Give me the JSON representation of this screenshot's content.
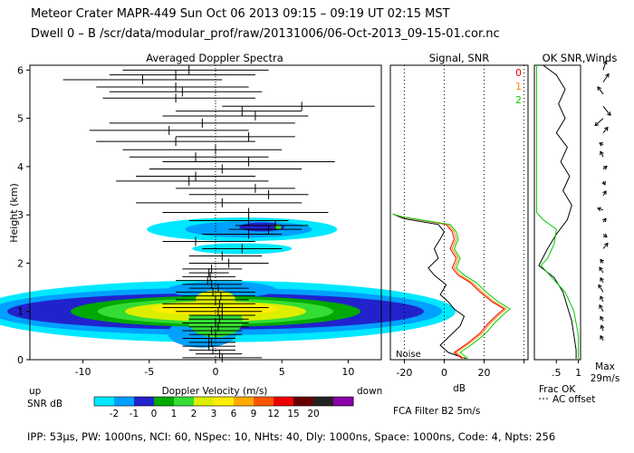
{
  "header": {
    "title": "Meteor Crater  MAPR-449  Sun Oct 06 2013 09:15 – 09:19 UT 02:15 MST",
    "subtitle": "Dwell  0 –  B   /scr/data/modular_prof/raw/20131006/06-Oct-2013_09-15-01.cor.nc"
  },
  "footer": {
    "params": "IPP: 53µs,  PW: 1000ns,  NCI: 60,  NSpec: 10, NHts: 40,  Dly: 1000ns,  Space: 1000ns,  Code: 4,  Npts: 256",
    "filter": "FCA Filter B2  5m/s"
  },
  "chart_data": [
    {
      "type": "heatmap",
      "title": "Averaged Doppler Spectra",
      "xlabel": "Doppler Velocity (m/s)",
      "ylabel": "Height (km)",
      "xlim": [
        -14,
        12.5
      ],
      "ylim": [
        0,
        6.1
      ],
      "x_ticks": [
        -10,
        -5,
        0,
        5,
        10
      ],
      "y_ticks": [
        0,
        1,
        2,
        3,
        4,
        5,
        6
      ],
      "x_left_label": "up",
      "x_right_label": "down",
      "colorbar": {
        "label": "SNR dB",
        "ticks": [
          "-2",
          "-1",
          "0",
          "1",
          "2",
          "3",
          "6",
          "9",
          "12",
          "15",
          "20"
        ],
        "colors": [
          "#00e8ff",
          "#00a0ff",
          "#2222cc",
          "#00aa00",
          "#33dd33",
          "#ddee00",
          "#ffee00",
          "#ffaa00",
          "#ff5500",
          "#ee0000",
          "#660000",
          "#222222",
          "#8800aa"
        ]
      },
      "moments": [
        {
          "h": 0.04,
          "mean": 0.5,
          "lo": -2.5,
          "hi": 3.5
        },
        {
          "h": 0.12,
          "mean": 0.3,
          "lo": -1.5,
          "hi": 2.0
        },
        {
          "h": 0.2,
          "mean": -0.2,
          "lo": -2.0,
          "hi": 1.5
        },
        {
          "h": 0.28,
          "mean": -0.5,
          "lo": -2.5,
          "hi": 1.5
        },
        {
          "h": 0.36,
          "mean": -0.3,
          "lo": -2.0,
          "hi": 1.5
        },
        {
          "h": 0.44,
          "mean": -0.5,
          "lo": -2.5,
          "hi": 1.5
        },
        {
          "h": 0.52,
          "mean": 0.0,
          "lo": -2.0,
          "hi": 2.0
        },
        {
          "h": 0.6,
          "mean": -0.3,
          "lo": -2.5,
          "hi": 2.0
        },
        {
          "h": 0.68,
          "mean": 0.2,
          "lo": -2.0,
          "hi": 2.5
        },
        {
          "h": 0.76,
          "mean": 0.0,
          "lo": -2.5,
          "hi": 2.5
        },
        {
          "h": 0.84,
          "mean": 0.3,
          "lo": -2.0,
          "hi": 2.5
        },
        {
          "h": 0.92,
          "mean": 0.5,
          "lo": -2.0,
          "hi": 3.0
        },
        {
          "h": 1.0,
          "mean": 0.2,
          "lo": -3.0,
          "hi": 3.5
        },
        {
          "h": 1.08,
          "mean": 0.5,
          "lo": -4.0,
          "hi": 4.0
        },
        {
          "h": 1.16,
          "mean": 0.3,
          "lo": -4.0,
          "hi": 3.0
        },
        {
          "h": 1.24,
          "mean": 0.0,
          "lo": -3.0,
          "hi": 2.5
        },
        {
          "h": 1.32,
          "mean": 0.4,
          "lo": -2.5,
          "hi": 3.0
        },
        {
          "h": 1.4,
          "mean": -0.2,
          "lo": -3.0,
          "hi": 3.0
        },
        {
          "h": 1.48,
          "mean": 0.2,
          "lo": -2.0,
          "hi": 2.5
        },
        {
          "h": 1.56,
          "mean": -0.3,
          "lo": -2.5,
          "hi": 2.0
        },
        {
          "h": 1.64,
          "mean": -0.6,
          "lo": -3.0,
          "hi": 2.0
        },
        {
          "h": 1.72,
          "mean": -0.4,
          "lo": -2.5,
          "hi": 1.5
        },
        {
          "h": 1.8,
          "mean": -0.5,
          "lo": -2.0,
          "hi": 1.0
        },
        {
          "h": 1.88,
          "mean": -0.3,
          "lo": -2.5,
          "hi": 2.0
        },
        {
          "h": 2.0,
          "mean": 1.0,
          "lo": -2.0,
          "hi": 4.0
        },
        {
          "h": 2.15,
          "mean": 0.5,
          "lo": -2.0,
          "hi": 3.5
        },
        {
          "h": 2.3,
          "mean": 2.0,
          "lo": -1.0,
          "hi": 5.0
        },
        {
          "h": 2.45,
          "mean": -1.5,
          "lo": -4.0,
          "hi": 3.0
        },
        {
          "h": 2.6,
          "mean": 2.5,
          "lo": -1.0,
          "hi": 5.0
        },
        {
          "h": 2.7,
          "mean": 4.0,
          "lo": 1.0,
          "hi": 6.5
        },
        {
          "h": 2.78,
          "mean": 4.5,
          "lo": 1.5,
          "hi": 7.0
        },
        {
          "h": 2.88,
          "mean": 2.5,
          "lo": -2.0,
          "hi": 5.5
        },
        {
          "h": 3.05,
          "mean": 2.5,
          "lo": -4.0,
          "hi": 8.5
        },
        {
          "h": 3.25,
          "mean": 0.5,
          "lo": -6.0,
          "hi": 6.5
        },
        {
          "h": 3.42,
          "mean": 4.0,
          "lo": -2.0,
          "hi": 7.0
        },
        {
          "h": 3.55,
          "mean": 3.0,
          "lo": -3.0,
          "hi": 6.0
        },
        {
          "h": 3.7,
          "mean": -2.0,
          "lo": -7.5,
          "hi": 4.0
        },
        {
          "h": 3.8,
          "mean": -1.5,
          "lo": -6.0,
          "hi": 3.0
        },
        {
          "h": 3.95,
          "mean": 0.5,
          "lo": -5.0,
          "hi": 6.5
        },
        {
          "h": 4.1,
          "mean": 2.5,
          "lo": -4.0,
          "hi": 9.0
        },
        {
          "h": 4.2,
          "mean": -1.5,
          "lo": -6.5,
          "hi": 4.0
        },
        {
          "h": 4.35,
          "mean": 0.0,
          "lo": -7.0,
          "hi": 5.0
        },
        {
          "h": 4.52,
          "mean": -3.0,
          "lo": -9.0,
          "hi": 3.0
        },
        {
          "h": 4.62,
          "mean": 2.5,
          "lo": -3.0,
          "hi": 6.0
        },
        {
          "h": 4.75,
          "mean": -3.5,
          "lo": -9.5,
          "hi": 2.5
        },
        {
          "h": 4.9,
          "mean": -1.0,
          "lo": -8.0,
          "hi": 6.0
        },
        {
          "h": 5.05,
          "mean": 3.0,
          "lo": -4.0,
          "hi": 7.0
        },
        {
          "h": 5.15,
          "mean": 2.0,
          "lo": -3.0,
          "hi": 6.5
        },
        {
          "h": 5.25,
          "mean": 6.5,
          "lo": 0.5,
          "hi": 12.0
        },
        {
          "h": 5.42,
          "mean": -3.0,
          "lo": -8.5,
          "hi": 3.0
        },
        {
          "h": 5.55,
          "mean": -2.5,
          "lo": -8.0,
          "hi": 3.5
        },
        {
          "h": 5.65,
          "mean": -3.0,
          "lo": -9.0,
          "hi": 2.5
        },
        {
          "h": 5.8,
          "mean": -5.5,
          "lo": -11.5,
          "hi": 0.5
        },
        {
          "h": 5.9,
          "mean": -3.0,
          "lo": -8.0,
          "hi": 3.0
        },
        {
          "h": 6.0,
          "mean": -2.0,
          "lo": -7.0,
          "hi": 4.0
        }
      ]
    },
    {
      "type": "line",
      "title": "Signal, SNR",
      "xlabel": "dB",
      "xlim": [
        -27,
        42
      ],
      "ylim": [
        0,
        6.1
      ],
      "x_ticks": [
        -20,
        0,
        20,
        40
      ],
      "tick_labels": [
        "-20",
        "0",
        "20"
      ],
      "noise_label": "Noise",
      "series": [
        {
          "name": "signal",
          "color": "#000000",
          "points": [
            [
              11,
              0.02
            ],
            [
              2,
              0.15
            ],
            [
              -2,
              0.3
            ],
            [
              3,
              0.5
            ],
            [
              8,
              0.7
            ],
            [
              10,
              0.9
            ],
            [
              5,
              1.05
            ],
            [
              2,
              1.2
            ],
            [
              -2,
              1.35
            ],
            [
              1,
              1.55
            ],
            [
              -5,
              1.75
            ],
            [
              -8,
              1.9
            ],
            [
              -3,
              2.1
            ],
            [
              -5,
              2.3
            ],
            [
              -2,
              2.5
            ],
            [
              0,
              2.65
            ],
            [
              -3,
              2.8
            ],
            [
              -20,
              2.92
            ],
            [
              -25,
              3.0
            ]
          ]
        },
        {
          "name": "0",
          "color": "#ee0000",
          "points": [
            [
              9,
              0.02
            ],
            [
              5,
              0.15
            ],
            [
              12,
              0.35
            ],
            [
              18,
              0.55
            ],
            [
              22,
              0.75
            ],
            [
              27,
              0.95
            ],
            [
              30,
              1.05
            ],
            [
              24,
              1.2
            ],
            [
              18,
              1.4
            ],
            [
              13,
              1.6
            ],
            [
              7,
              1.75
            ],
            [
              4,
              1.9
            ],
            [
              6,
              2.1
            ],
            [
              3,
              2.3
            ],
            [
              5,
              2.5
            ],
            [
              4,
              2.65
            ],
            [
              1,
              2.8
            ],
            [
              -20,
              2.95
            ],
            [
              -25,
              3.0
            ]
          ]
        },
        {
          "name": "1",
          "color": "#ff8800",
          "points": [
            [
              10,
              0.02
            ],
            [
              6,
              0.15
            ],
            [
              13,
              0.35
            ],
            [
              19,
              0.55
            ],
            [
              23,
              0.75
            ],
            [
              28,
              0.95
            ],
            [
              31,
              1.05
            ],
            [
              25,
              1.2
            ],
            [
              19,
              1.4
            ],
            [
              14,
              1.6
            ],
            [
              8,
              1.75
            ],
            [
              5,
              1.9
            ],
            [
              7,
              2.1
            ],
            [
              4,
              2.3
            ],
            [
              6,
              2.5
            ],
            [
              5,
              2.65
            ],
            [
              2,
              2.8
            ],
            [
              -20,
              2.95
            ],
            [
              -25,
              3.0
            ]
          ]
        },
        {
          "name": "2",
          "color": "#00cc00",
          "points": [
            [
              12,
              0.02
            ],
            [
              8,
              0.15
            ],
            [
              15,
              0.35
            ],
            [
              21,
              0.55
            ],
            [
              25,
              0.75
            ],
            [
              30,
              0.95
            ],
            [
              33,
              1.05
            ],
            [
              27,
              1.2
            ],
            [
              21,
              1.4
            ],
            [
              16,
              1.6
            ],
            [
              10,
              1.75
            ],
            [
              6,
              1.9
            ],
            [
              8,
              2.1
            ],
            [
              5,
              2.3
            ],
            [
              7,
              2.5
            ],
            [
              6,
              2.65
            ],
            [
              3,
              2.8
            ],
            [
              -20,
              2.95
            ],
            [
              -26,
              3.02
            ]
          ]
        }
      ],
      "legend": [
        "0",
        "1",
        "2"
      ]
    },
    {
      "type": "line",
      "title": "OK SNR,Winds",
      "xlabel": "Frac OK",
      "xlim": [
        0,
        1.05
      ],
      "ylim": [
        0,
        6.1
      ],
      "x_ticks": [
        0.5,
        1
      ],
      "tick_labels": [
        ".5",
        "1"
      ],
      "dash_label": "AC offset",
      "series": [
        {
          "name": "frac_ok",
          "color": "#000000",
          "points": [
            [
              0.2,
              6.1
            ],
            [
              0.5,
              5.9
            ],
            [
              0.7,
              5.6
            ],
            [
              0.55,
              5.3
            ],
            [
              0.7,
              5.0
            ],
            [
              0.5,
              4.7
            ],
            [
              0.75,
              4.4
            ],
            [
              0.6,
              4.1
            ],
            [
              0.8,
              3.8
            ],
            [
              0.65,
              3.5
            ],
            [
              0.85,
              3.2
            ],
            [
              0.75,
              2.9
            ],
            [
              0.5,
              2.6
            ],
            [
              0.3,
              2.3
            ],
            [
              0.1,
              1.95
            ],
            [
              0.45,
              1.7
            ],
            [
              0.65,
              1.4
            ],
            [
              0.75,
              1.1
            ],
            [
              0.85,
              0.8
            ],
            [
              0.9,
              0.5
            ],
            [
              0.95,
              0.2
            ],
            [
              0.95,
              0.02
            ]
          ]
        },
        {
          "name": "snr_ok",
          "color": "#00cc00",
          "points": [
            [
              0.05,
              6.1
            ],
            [
              0.05,
              3.05
            ],
            [
              0.2,
              2.9
            ],
            [
              0.5,
              2.7
            ],
            [
              0.45,
              2.4
            ],
            [
              0.3,
              2.1
            ],
            [
              0.15,
              1.95
            ],
            [
              0.4,
              1.7
            ],
            [
              0.7,
              1.4
            ],
            [
              0.9,
              1.0
            ],
            [
              1.0,
              0.5
            ],
            [
              1.0,
              0.02
            ]
          ]
        }
      ]
    },
    {
      "type": "scatter",
      "title": "Winds",
      "max_label": "Max",
      "max_value": "29m/s",
      "barbs": [
        {
          "h": 0.4,
          "u": -3,
          "v": 5
        },
        {
          "h": 0.6,
          "u": -2,
          "v": 6
        },
        {
          "h": 0.8,
          "u": -3,
          "v": 5
        },
        {
          "h": 1.0,
          "u": -4,
          "v": 7
        },
        {
          "h": 1.2,
          "u": -3,
          "v": 6
        },
        {
          "h": 1.4,
          "u": -5,
          "v": 8
        },
        {
          "h": 1.6,
          "u": -3,
          "v": 5
        },
        {
          "h": 1.8,
          "u": -4,
          "v": 6
        },
        {
          "h": 2.0,
          "u": -3,
          "v": 4
        },
        {
          "h": 2.3,
          "u": 5,
          "v": 6
        },
        {
          "h": 2.6,
          "u": 4,
          "v": -3
        },
        {
          "h": 2.85,
          "u": 3,
          "v": 4
        },
        {
          "h": 3.1,
          "u": -6,
          "v": 2
        },
        {
          "h": 3.4,
          "u": 3,
          "v": 5
        },
        {
          "h": 3.7,
          "u": 2,
          "v": -4
        },
        {
          "h": 3.95,
          "u": 4,
          "v": 3
        },
        {
          "h": 4.2,
          "u": -3,
          "v": 6
        },
        {
          "h": 4.45,
          "u": -4,
          "v": 2
        },
        {
          "h": 4.7,
          "u": 5,
          "v": 6
        },
        {
          "h": 5.0,
          "u": -9,
          "v": -8
        },
        {
          "h": 5.25,
          "u": 8,
          "v": -10
        },
        {
          "h": 5.5,
          "u": -6,
          "v": 8
        },
        {
          "h": 5.75,
          "u": 6,
          "v": 9
        },
        {
          "h": 6.0,
          "u": 3,
          "v": 10
        }
      ]
    }
  ]
}
